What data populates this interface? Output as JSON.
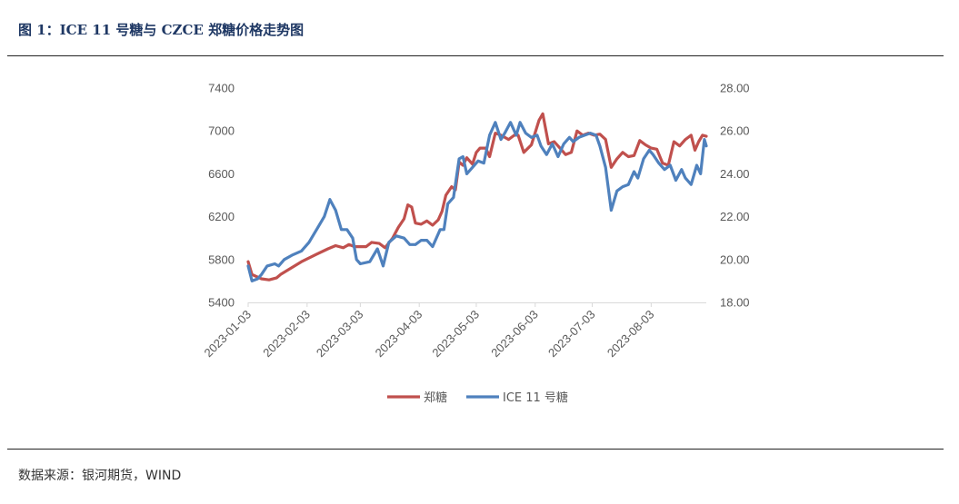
{
  "title": "图 1：ICE 11 号糖与 CZCE 郑糖价格走势图",
  "source": "数据来源：银河期货，WIND",
  "chart_data": {
    "type": "line",
    "left_axis": {
      "min": 5400,
      "max": 7400,
      "ticks": [
        "7400",
        "7000",
        "6600",
        "6200",
        "5800",
        "5400"
      ]
    },
    "right_axis": {
      "min": 18.0,
      "max": 28.0,
      "ticks": [
        "28.00",
        "26.00",
        "24.00",
        "22.00",
        "20.00",
        "18.00"
      ]
    },
    "x_start": "2023-01-03",
    "x_end": "2023-09-01",
    "x_ticks": [
      "2023-01-03",
      "2023-02-03",
      "2023-03-03",
      "2023-04-03",
      "2023-05-03",
      "2023-06-03",
      "2023-07-03",
      "2023-08-03"
    ],
    "colors": {
      "zhengtang": "#c0504d",
      "ice": "#4f81bd"
    },
    "series": [
      {
        "name": "郑糖",
        "axis": "left",
        "points": [
          [
            "2023-01-03",
            5780
          ],
          [
            "2023-01-05",
            5660
          ],
          [
            "2023-01-10",
            5620
          ],
          [
            "2023-01-14",
            5610
          ],
          [
            "2023-01-18",
            5630
          ],
          [
            "2023-01-20",
            5660
          ],
          [
            "2023-01-31",
            5780
          ],
          [
            "2023-02-08",
            5850
          ],
          [
            "2023-02-14",
            5900
          ],
          [
            "2023-02-18",
            5930
          ],
          [
            "2023-02-22",
            5910
          ],
          [
            "2023-02-25",
            5940
          ],
          [
            "2023-02-28",
            5920
          ],
          [
            "2023-03-02",
            5920
          ],
          [
            "2023-03-06",
            5920
          ],
          [
            "2023-03-09",
            5960
          ],
          [
            "2023-03-13",
            5950
          ],
          [
            "2023-03-16",
            5910
          ],
          [
            "2023-03-20",
            6000
          ],
          [
            "2023-03-23",
            6100
          ],
          [
            "2023-03-26",
            6180
          ],
          [
            "2023-03-28",
            6310
          ],
          [
            "2023-03-30",
            6290
          ],
          [
            "2023-04-01",
            6140
          ],
          [
            "2023-04-04",
            6130
          ],
          [
            "2023-04-07",
            6160
          ],
          [
            "2023-04-10",
            6120
          ],
          [
            "2023-04-13",
            6170
          ],
          [
            "2023-04-15",
            6250
          ],
          [
            "2023-04-17",
            6400
          ],
          [
            "2023-04-20",
            6480
          ],
          [
            "2023-04-22",
            6450
          ],
          [
            "2023-04-24",
            6710
          ],
          [
            "2023-04-26",
            6680
          ],
          [
            "2023-04-28",
            6750
          ],
          [
            "2023-05-01",
            6690
          ],
          [
            "2023-05-03",
            6800
          ],
          [
            "2023-05-05",
            6840
          ],
          [
            "2023-05-08",
            6840
          ],
          [
            "2023-05-10",
            6760
          ],
          [
            "2023-05-13",
            6980
          ],
          [
            "2023-05-16",
            6960
          ],
          [
            "2023-05-20",
            6920
          ],
          [
            "2023-05-23",
            6960
          ],
          [
            "2023-05-25",
            6960
          ],
          [
            "2023-05-28",
            6800
          ],
          [
            "2023-06-01",
            6870
          ],
          [
            "2023-06-05",
            7100
          ],
          [
            "2023-06-07",
            7160
          ],
          [
            "2023-06-10",
            6880
          ],
          [
            "2023-06-13",
            6900
          ],
          [
            "2023-06-16",
            6840
          ],
          [
            "2023-06-19",
            6780
          ],
          [
            "2023-06-22",
            6800
          ],
          [
            "2023-06-25",
            7000
          ],
          [
            "2023-06-28",
            6960
          ],
          [
            "2023-07-01",
            6980
          ],
          [
            "2023-07-04",
            6960
          ],
          [
            "2023-07-07",
            6970
          ],
          [
            "2023-07-10",
            6920
          ],
          [
            "2023-07-13",
            6660
          ],
          [
            "2023-07-16",
            6740
          ],
          [
            "2023-07-19",
            6800
          ],
          [
            "2023-07-22",
            6760
          ],
          [
            "2023-07-25",
            6770
          ],
          [
            "2023-07-28",
            6910
          ],
          [
            "2023-07-31",
            6870
          ],
          [
            "2023-08-03",
            6840
          ],
          [
            "2023-08-06",
            6830
          ],
          [
            "2023-08-09",
            6700
          ],
          [
            "2023-08-12",
            6680
          ],
          [
            "2023-08-15",
            6900
          ],
          [
            "2023-08-18",
            6860
          ],
          [
            "2023-08-21",
            6920
          ],
          [
            "2023-08-24",
            6960
          ],
          [
            "2023-08-26",
            6820
          ],
          [
            "2023-08-28",
            6900
          ],
          [
            "2023-08-30",
            6960
          ],
          [
            "2023-09-01",
            6950
          ]
        ]
      },
      {
        "name": "ICE 11 号糖",
        "axis": "right",
        "points": [
          [
            "2023-01-03",
            19.7
          ],
          [
            "2023-01-05",
            19.0
          ],
          [
            "2023-01-08",
            19.1
          ],
          [
            "2023-01-10",
            19.3
          ],
          [
            "2023-01-13",
            19.7
          ],
          [
            "2023-01-17",
            19.8
          ],
          [
            "2023-01-19",
            19.7
          ],
          [
            "2023-01-22",
            20.0
          ],
          [
            "2023-01-26",
            20.2
          ],
          [
            "2023-01-31",
            20.4
          ],
          [
            "2023-02-04",
            20.8
          ],
          [
            "2023-02-08",
            21.4
          ],
          [
            "2023-02-12",
            22.0
          ],
          [
            "2023-02-15",
            22.8
          ],
          [
            "2023-02-18",
            22.3
          ],
          [
            "2023-02-21",
            21.4
          ],
          [
            "2023-02-24",
            21.4
          ],
          [
            "2023-02-27",
            21.0
          ],
          [
            "2023-03-01",
            20.0
          ],
          [
            "2023-03-03",
            19.8
          ],
          [
            "2023-03-08",
            19.9
          ],
          [
            "2023-03-12",
            20.5
          ],
          [
            "2023-03-15",
            19.7
          ],
          [
            "2023-03-18",
            20.8
          ],
          [
            "2023-03-22",
            21.1
          ],
          [
            "2023-03-26",
            21.0
          ],
          [
            "2023-03-29",
            20.7
          ],
          [
            "2023-04-01",
            20.7
          ],
          [
            "2023-04-04",
            20.9
          ],
          [
            "2023-04-07",
            20.9
          ],
          [
            "2023-04-10",
            20.6
          ],
          [
            "2023-04-14",
            21.4
          ],
          [
            "2023-04-16",
            21.4
          ],
          [
            "2023-04-18",
            22.6
          ],
          [
            "2023-04-21",
            22.9
          ],
          [
            "2023-04-24",
            24.7
          ],
          [
            "2023-04-26",
            24.8
          ],
          [
            "2023-04-28",
            24.0
          ],
          [
            "2023-05-01",
            24.3
          ],
          [
            "2023-05-04",
            24.6
          ],
          [
            "2023-05-07",
            24.5
          ],
          [
            "2023-05-10",
            25.8
          ],
          [
            "2023-05-13",
            26.4
          ],
          [
            "2023-05-16",
            25.6
          ],
          [
            "2023-05-18",
            25.9
          ],
          [
            "2023-05-21",
            26.4
          ],
          [
            "2023-05-24",
            25.8
          ],
          [
            "2023-05-26",
            26.4
          ],
          [
            "2023-05-29",
            25.9
          ],
          [
            "2023-06-01",
            25.7
          ],
          [
            "2023-06-04",
            25.8
          ],
          [
            "2023-06-06",
            25.3
          ],
          [
            "2023-06-09",
            24.9
          ],
          [
            "2023-06-12",
            25.4
          ],
          [
            "2023-06-15",
            24.8
          ],
          [
            "2023-06-18",
            25.4
          ],
          [
            "2023-06-21",
            25.7
          ],
          [
            "2023-06-23",
            25.5
          ],
          [
            "2023-06-26",
            25.7
          ],
          [
            "2023-06-29",
            25.8
          ],
          [
            "2023-07-02",
            25.9
          ],
          [
            "2023-07-05",
            25.8
          ],
          [
            "2023-07-07",
            25.3
          ],
          [
            "2023-07-10",
            24.3
          ],
          [
            "2023-07-13",
            22.3
          ],
          [
            "2023-07-16",
            23.2
          ],
          [
            "2023-07-19",
            23.4
          ],
          [
            "2023-07-22",
            23.5
          ],
          [
            "2023-07-25",
            24.1
          ],
          [
            "2023-07-27",
            23.8
          ],
          [
            "2023-07-30",
            24.7
          ],
          [
            "2023-08-02",
            25.1
          ],
          [
            "2023-08-04",
            24.9
          ],
          [
            "2023-08-07",
            24.5
          ],
          [
            "2023-08-10",
            24.2
          ],
          [
            "2023-08-13",
            24.4
          ],
          [
            "2023-08-16",
            23.7
          ],
          [
            "2023-08-19",
            24.2
          ],
          [
            "2023-08-21",
            23.8
          ],
          [
            "2023-08-24",
            23.5
          ],
          [
            "2023-08-27",
            24.4
          ],
          [
            "2023-08-29",
            24.0
          ],
          [
            "2023-08-31",
            25.6
          ],
          [
            "2023-09-01",
            25.3
          ]
        ]
      }
    ]
  }
}
